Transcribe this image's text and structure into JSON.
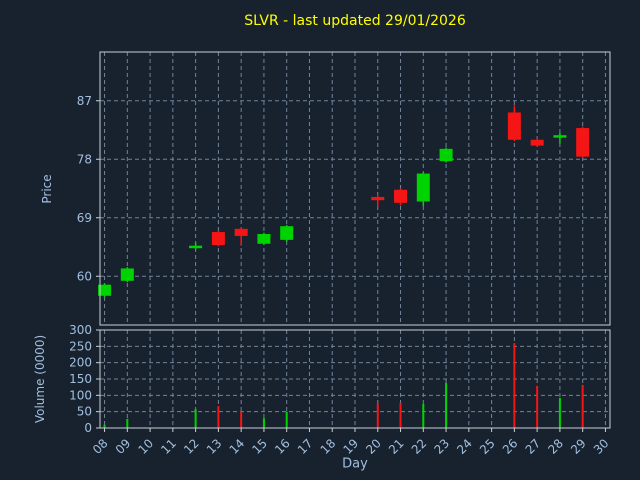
{
  "colors": {
    "background": "#17222e",
    "frame": "#c9cfd7",
    "grid": "#72839a",
    "tick_label": "#a3bfdf",
    "title": "#ffff00",
    "up": "#00d400",
    "down": "#f51515"
  },
  "chart_data": {
    "type": "candlestick",
    "title": "SLVR - last updated 29/01/2026",
    "xlabel": "Day",
    "ylabel_price": "Price",
    "ylabel_volume": "Volume (0000)",
    "grid": "dashed",
    "legend": "none",
    "xlim": [
      7.8,
      30.2
    ],
    "price_ylim": [
      52.5,
      94.5
    ],
    "volume_ylim": [
      0,
      300
    ],
    "x_ticks": [
      8,
      9,
      10,
      11,
      12,
      13,
      14,
      15,
      16,
      17,
      18,
      19,
      20,
      21,
      22,
      23,
      24,
      25,
      26,
      27,
      28,
      29,
      30
    ],
    "x_tick_labels": [
      "08",
      "09",
      "10",
      "11",
      "12",
      "13",
      "14",
      "15",
      "16",
      "17",
      "18",
      "19",
      "20",
      "21",
      "22",
      "23",
      "24",
      "25",
      "26",
      "27",
      "28",
      "29",
      "30"
    ],
    "price_ticks": [
      60,
      69,
      78,
      87
    ],
    "volume_ticks": [
      0,
      50,
      100,
      150,
      200,
      250,
      300
    ],
    "candles": [
      {
        "day": 8,
        "open": 57.0,
        "high": 58.9,
        "low": 56.7,
        "close": 58.7,
        "volume": 10
      },
      {
        "day": 9,
        "open": 59.3,
        "high": 61.4,
        "low": 59.1,
        "close": 61.2,
        "volume": 28
      },
      {
        "day": 12,
        "open": 64.5,
        "high": 65.2,
        "low": 64.1,
        "close": 64.7,
        "volume": 58
      },
      {
        "day": 13,
        "open": 66.8,
        "high": 67.0,
        "low": 64.6,
        "close": 64.8,
        "volume": 67
      },
      {
        "day": 14,
        "open": 67.3,
        "high": 67.5,
        "low": 64.7,
        "close": 66.2,
        "volume": 50
      },
      {
        "day": 15,
        "open": 65.0,
        "high": 66.7,
        "low": 64.8,
        "close": 66.5,
        "volume": 30
      },
      {
        "day": 16,
        "open": 65.6,
        "high": 67.9,
        "low": 65.3,
        "close": 67.7,
        "volume": 50
      },
      {
        "day": 20,
        "open": 72.2,
        "high": 72.4,
        "low": 70.7,
        "close": 71.7,
        "volume": 77
      },
      {
        "day": 21,
        "open": 73.3,
        "high": 73.5,
        "low": 70.9,
        "close": 71.3,
        "volume": 77
      },
      {
        "day": 22,
        "open": 71.5,
        "high": 76.0,
        "low": 70.8,
        "close": 75.8,
        "volume": 74
      },
      {
        "day": 23,
        "open": 77.7,
        "high": 79.8,
        "low": 77.5,
        "close": 79.6,
        "volume": 138
      },
      {
        "day": 26,
        "open": 85.2,
        "high": 86.3,
        "low": 80.8,
        "close": 81.0,
        "volume": 260
      },
      {
        "day": 27,
        "open": 81.0,
        "high": 81.2,
        "low": 79.9,
        "close": 80.1,
        "volume": 129
      },
      {
        "day": 28,
        "open": 81.4,
        "high": 82.1,
        "low": 80.4,
        "close": 81.7,
        "volume": 92
      },
      {
        "day": 29,
        "open": 82.8,
        "high": 83.0,
        "low": 78.2,
        "close": 78.4,
        "volume": 132
      }
    ]
  }
}
